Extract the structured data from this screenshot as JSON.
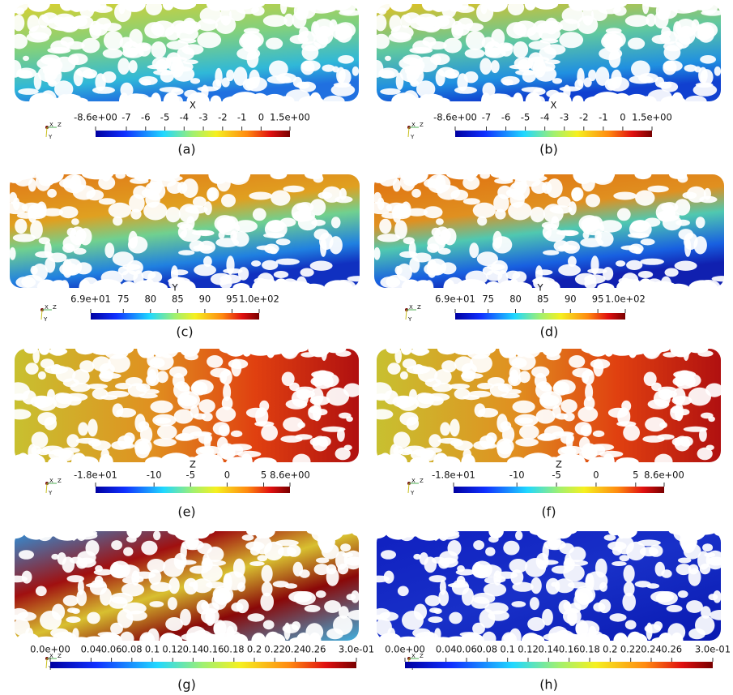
{
  "orientation_axes": [
    "X",
    "Z",
    "Y"
  ],
  "panels": [
    {
      "label": "(a)",
      "colorbar": {
        "title": "X",
        "lim": [
          -8.6,
          1.5
        ],
        "ticks": [
          {
            "value": -8.6,
            "label": "-8.6e+00"
          },
          -7,
          -6,
          -5,
          -4,
          -3,
          -2,
          -1,
          0,
          {
            "value": 1.5,
            "label": "1.5e+00"
          }
        ]
      }
    },
    {
      "label": "(b)",
      "colorbar": {
        "title": "X",
        "lim": [
          -8.6,
          1.5
        ],
        "ticks": [
          {
            "value": -8.6,
            "label": "-8.6e+00"
          },
          -7,
          -6,
          -5,
          -4,
          -3,
          -2,
          -1,
          0,
          {
            "value": 1.5,
            "label": "1.5e+00"
          }
        ]
      }
    },
    {
      "label": "(c)",
      "colorbar": {
        "title": "Y",
        "lim": [
          69,
          100
        ],
        "ticks": [
          {
            "value": 69,
            "label": "6.9e+01"
          },
          75,
          80,
          85,
          90,
          95,
          {
            "value": 100,
            "label": "1.0e+02"
          }
        ]
      }
    },
    {
      "label": "(d)",
      "colorbar": {
        "title": "Y",
        "lim": [
          69,
          100
        ],
        "ticks": [
          {
            "value": 69,
            "label": "6.9e+01"
          },
          75,
          80,
          85,
          90,
          95,
          {
            "value": 100,
            "label": "1.0e+02"
          }
        ]
      }
    },
    {
      "label": "(e)",
      "colorbar": {
        "title": "Z",
        "lim": [
          -18,
          8.6
        ],
        "ticks": [
          {
            "value": -18,
            "label": "-1.8e+01"
          },
          -10,
          -5,
          0,
          5,
          {
            "value": 8.6,
            "label": "8.6e+00"
          }
        ]
      }
    },
    {
      "label": "(f)",
      "colorbar": {
        "title": "Z",
        "lim": [
          -18,
          8.6
        ],
        "ticks": [
          {
            "value": -18,
            "label": "-1.8e+01"
          },
          -10,
          -5,
          0,
          5,
          {
            "value": 8.6,
            "label": "8.6e+00"
          }
        ]
      }
    },
    {
      "label": "(g)",
      "colorbar": {
        "lim": [
          0,
          0.3
        ],
        "ticks": [
          {
            "value": 0,
            "label": "0.0e+00"
          },
          0.04,
          0.06,
          0.08,
          0.1,
          0.12,
          0.14,
          0.16,
          0.18,
          0.2,
          0.22,
          0.24,
          0.26,
          {
            "value": 0.3,
            "label": "3.0e-01"
          }
        ]
      }
    },
    {
      "label": "(h)",
      "colorbar": {
        "lim": [
          0,
          0.3
        ],
        "ticks": [
          {
            "value": 0,
            "label": "0.0e+00"
          },
          0.04,
          0.06,
          0.08,
          0.1,
          0.12,
          0.14,
          0.16,
          0.18,
          0.2,
          0.22,
          0.24,
          0.26,
          {
            "value": 0.3,
            "label": "3.0e-01"
          }
        ]
      }
    }
  ]
}
